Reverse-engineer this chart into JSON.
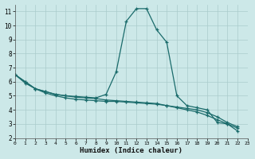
{
  "xlabel": "Humidex (Indice chaleur)",
  "xlim": [
    0,
    23
  ],
  "ylim": [
    2,
    11.5
  ],
  "xticks": [
    0,
    1,
    2,
    3,
    4,
    5,
    6,
    7,
    8,
    9,
    10,
    11,
    12,
    13,
    14,
    15,
    16,
    17,
    18,
    19,
    20,
    21,
    22,
    23
  ],
  "yticks": [
    2,
    3,
    4,
    5,
    6,
    7,
    8,
    9,
    10,
    11
  ],
  "bg_color": "#cce8e8",
  "grid_color": "#aacccc",
  "line_color": "#1a6b6b",
  "line1_x": [
    0,
    1,
    2,
    3,
    4,
    5,
    6,
    7,
    8,
    9,
    10,
    11,
    12,
    13,
    14,
    15,
    16,
    17,
    18,
    19,
    20,
    21,
    22
  ],
  "line1_y": [
    6.5,
    6.0,
    5.5,
    5.3,
    5.1,
    5.0,
    4.95,
    4.9,
    4.85,
    5.1,
    6.7,
    10.3,
    11.2,
    11.2,
    9.7,
    8.8,
    5.0,
    4.3,
    4.15,
    4.0,
    3.1,
    3.0,
    2.5
  ],
  "line2_x": [
    0,
    1,
    2,
    3,
    4,
    5,
    6,
    7,
    8,
    9,
    10,
    11,
    12,
    13,
    14,
    15,
    16,
    17,
    18,
    19,
    20,
    21,
    22
  ],
  "line2_y": [
    6.5,
    5.9,
    5.5,
    5.2,
    5.0,
    4.85,
    4.75,
    4.7,
    4.65,
    4.6,
    4.6,
    4.55,
    4.5,
    4.45,
    4.4,
    4.3,
    4.2,
    4.1,
    4.0,
    3.8,
    3.5,
    3.1,
    2.8
  ],
  "line3_x": [
    0,
    1,
    2,
    3,
    4,
    5,
    6,
    7,
    8,
    9,
    10,
    11,
    12,
    13,
    14,
    15,
    16,
    17,
    18,
    19,
    20,
    21,
    22
  ],
  "line3_y": [
    6.5,
    6.0,
    5.5,
    5.3,
    5.1,
    5.0,
    4.9,
    4.85,
    4.8,
    4.7,
    4.65,
    4.6,
    4.55,
    4.5,
    4.45,
    4.3,
    4.15,
    4.0,
    3.85,
    3.6,
    3.3,
    3.0,
    2.7
  ]
}
